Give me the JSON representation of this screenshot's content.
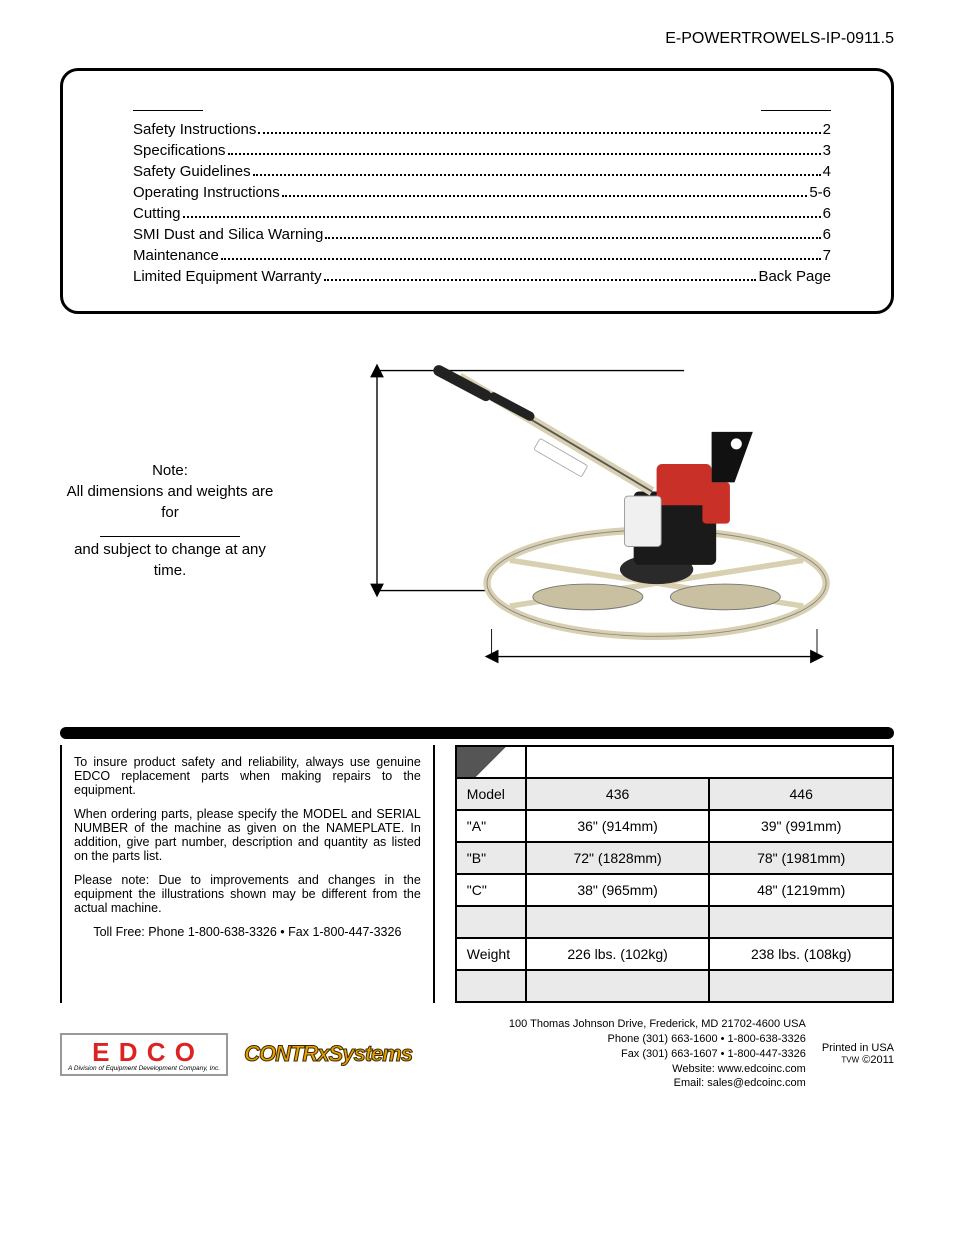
{
  "doc_id": "E-POWERTROWELS-IP-0911.5",
  "toc": {
    "rows": [
      {
        "label": "Safety Instructions",
        "page": "2"
      },
      {
        "label": "Specifications",
        "page": "3"
      },
      {
        "label": "Safety Guidelines",
        "page": "4"
      },
      {
        "label": "Operating Instructions",
        "page": "5-6"
      },
      {
        "label": "Cutting",
        "page": "6"
      },
      {
        "label": "SMI Dust and Silica Warning",
        "page": "6"
      },
      {
        "label": "Maintenance",
        "page": "7"
      },
      {
        "label": "Limited Equipment Warranty",
        "page": "Back Page"
      }
    ]
  },
  "note": {
    "line1": "Note:",
    "line2": "All dimensions and weights are for",
    "line3": "and subject to change at any time."
  },
  "diagram": {
    "colors": {
      "machine_body": "#e8e0c8",
      "engine_red": "#c83028",
      "engine_white": "#f0f0f0",
      "engine_black": "#1a1a1a",
      "guard_ring": "#d8d0b0",
      "handle": "#222222",
      "dim_line": "#000000"
    }
  },
  "ordering": {
    "p1": "To insure product safety and reliability, always use genuine EDCO replacement parts when making repairs to the equipment.",
    "p2": "When ordering parts, please specify the MODEL and SERIAL NUMBER of the machine as given on the NAMEPLATE.  In addition, give part number, description and quantity as listed on the parts list.",
    "p3": "Please note: Due to improvements and changes in the equipment the illustrations shown may be different from the actual machine.",
    "toll": "Toll Free:  Phone 1-800-638-3326 • Fax 1-800-447-3326"
  },
  "spec_table": {
    "rows": [
      {
        "label": "Model",
        "c1": "436",
        "c2": "446",
        "alt": true
      },
      {
        "label": "\"A\"",
        "c1": "36\"  (914mm)",
        "c2": "39\"  (991mm)",
        "alt": false
      },
      {
        "label": "\"B\"",
        "c1": "72\"  (1828mm)",
        "c2": "78\"  (1981mm)",
        "alt": true
      },
      {
        "label": "\"C\"",
        "c1": "38\"  (965mm)",
        "c2": "48\" (1219mm)",
        "alt": false
      },
      {
        "label": "",
        "c1": "",
        "c2": "",
        "alt": true
      },
      {
        "label": "Weight",
        "c1": "226 lbs.  (102kg)",
        "c2": "238 lbs.  (108kg)",
        "alt": false
      },
      {
        "label": "",
        "c1": "",
        "c2": "",
        "alt": true
      }
    ]
  },
  "footer": {
    "edco_main": "E D C O",
    "edco_sub": "A Division of Equipment Development Company, Inc.",
    "contrx": "CONTRxSystems",
    "addr": "100 Thomas Johnson Drive, Frederick, MD 21702-4600 USA",
    "phone": "Phone (301) 663-1600 • 1-800-638-3326",
    "fax": "Fax (301) 663-1607 • 1-800-447-3326",
    "web": "Website: www.edcoinc.com",
    "email": "Email: sales@edcoinc.com",
    "printed": "Printed in USA",
    "copy": "©2011",
    "tvw": "TVW"
  }
}
